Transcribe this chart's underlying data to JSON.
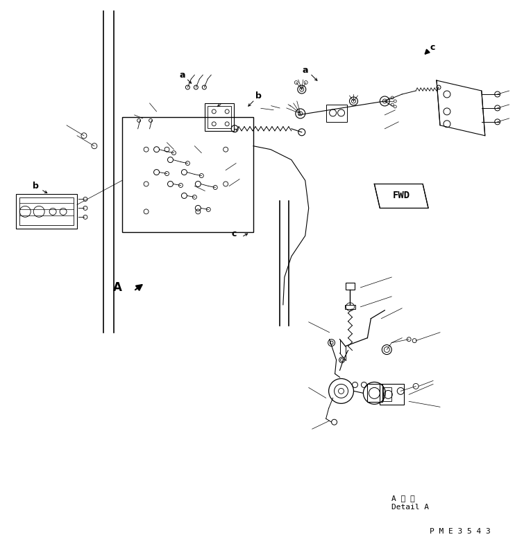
{
  "bg_color": "#ffffff",
  "line_color": "#000000",
  "fig_width": 7.42,
  "fig_height": 8.01,
  "dpi": 100,
  "bottom_right_text": "P M E 3 5 4 3",
  "detail_label_jp": "A 詳 細",
  "detail_label_en": "Detail A",
  "fwd_label": "FWD",
  "label_a1": "a",
  "label_a2": "a",
  "label_b": "b",
  "label_b2": "b",
  "label_c": "c",
  "label_A": "A"
}
